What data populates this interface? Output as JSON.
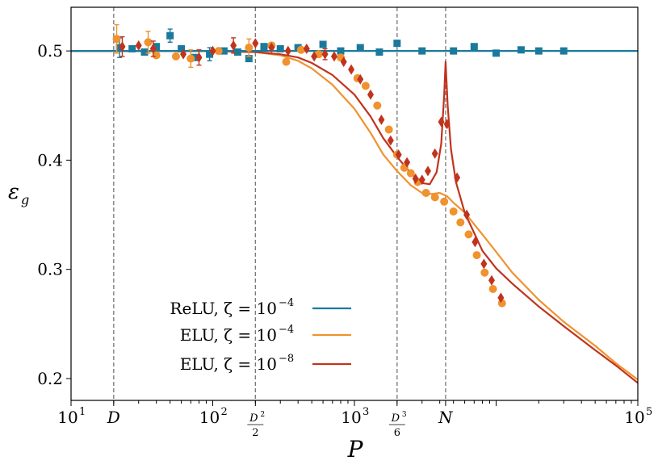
{
  "chart_data": {
    "type": "line+scatter",
    "xscale": "log",
    "xlim": [
      10,
      100000
    ],
    "ylim": [
      0.18,
      0.54
    ],
    "xlabel": "P",
    "ylabel": "ε",
    "ylabel_sub": "g",
    "yticks": [
      {
        "value": 0.2,
        "label": "0.2"
      },
      {
        "value": 0.3,
        "label": "0.3"
      },
      {
        "value": 0.4,
        "label": "0.4"
      },
      {
        "value": 0.5,
        "label": "0.5"
      }
    ],
    "xticks": [
      {
        "value": 10,
        "base": "10",
        "exp": "1"
      },
      {
        "value": 100,
        "base": "10",
        "exp": "2"
      },
      {
        "value": 1000,
        "base": "10",
        "exp": "3"
      },
      {
        "value": 100000,
        "base": "10",
        "exp": "5"
      }
    ],
    "markers": [
      {
        "name": "D",
        "value": 20,
        "label": "D"
      },
      {
        "name": "D2/2",
        "value": 200,
        "num": "D",
        "num_exp": "2",
        "den": "2"
      },
      {
        "name": "D3/6",
        "value": 2000,
        "num": "D",
        "num_exp": "3",
        "den": "6"
      },
      {
        "name": "N",
        "value": 4400,
        "label": "N"
      }
    ],
    "series": [
      {
        "name": "ReLU, ζ = 10^-4",
        "legend_label": "ReLU, ζ = 10",
        "legend_exp": "−4",
        "color": "#1b7a9c",
        "marker": "square",
        "curve": [
          [
            10,
            0.5
          ],
          [
            100000,
            0.5
          ]
        ],
        "points": [
          [
            22,
            0.503,
            0.009
          ],
          [
            27,
            0.502,
            0
          ],
          [
            33,
            0.499,
            0
          ],
          [
            40,
            0.504,
            0
          ],
          [
            50,
            0.514,
            0.006
          ],
          [
            60,
            0.502,
            0
          ],
          [
            75,
            0.494,
            0
          ],
          [
            95,
            0.497,
            0.006
          ],
          [
            120,
            0.5,
            0
          ],
          [
            150,
            0.499,
            0
          ],
          [
            180,
            0.493,
            0
          ],
          [
            230,
            0.504,
            0
          ],
          [
            300,
            0.502,
            0
          ],
          [
            400,
            0.503,
            0
          ],
          [
            600,
            0.506,
            0
          ],
          [
            800,
            0.5,
            0
          ],
          [
            1100,
            0.503,
            0
          ],
          [
            1500,
            0.499,
            0
          ],
          [
            2000,
            0.507,
            0
          ],
          [
            3000,
            0.5,
            0
          ],
          [
            5000,
            0.5,
            0
          ],
          [
            7000,
            0.504,
            0
          ],
          [
            10000,
            0.498,
            0
          ],
          [
            15000,
            0.501,
            0
          ],
          [
            20000,
            0.5,
            0
          ],
          [
            30000,
            0.5,
            0
          ]
        ]
      },
      {
        "name": "ELU, ζ = 10^-4",
        "legend_label": "ELU, ζ = 10",
        "legend_exp": "−4",
        "color": "#f0922e",
        "marker": "circle",
        "curve": [
          [
            10,
            0.5
          ],
          [
            100,
            0.5
          ],
          [
            200,
            0.499
          ],
          [
            300,
            0.496
          ],
          [
            400,
            0.491
          ],
          [
            500,
            0.484
          ],
          [
            700,
            0.469
          ],
          [
            1000,
            0.447
          ],
          [
            1300,
            0.425
          ],
          [
            1600,
            0.405
          ],
          [
            2000,
            0.39
          ],
          [
            2500,
            0.377
          ],
          [
            3000,
            0.37
          ],
          [
            3500,
            0.369
          ],
          [
            4000,
            0.37
          ],
          [
            4500,
            0.367
          ],
          [
            5000,
            0.361
          ],
          [
            6000,
            0.352
          ],
          [
            8000,
            0.332
          ],
          [
            10000,
            0.316
          ],
          [
            13000,
            0.297
          ],
          [
            20000,
            0.272
          ],
          [
            30000,
            0.252
          ],
          [
            50000,
            0.23
          ],
          [
            70000,
            0.214
          ],
          [
            100000,
            0.199
          ]
        ],
        "points": [
          [
            21,
            0.511,
            0.013
          ],
          [
            35,
            0.508,
            0.01
          ],
          [
            40,
            0.496,
            0
          ],
          [
            55,
            0.495,
            0
          ],
          [
            70,
            0.493,
            0.008
          ],
          [
            110,
            0.5,
            0
          ],
          [
            180,
            0.503,
            0.008
          ],
          [
            260,
            0.505,
            0
          ],
          [
            330,
            0.49,
            0
          ],
          [
            420,
            0.501,
            0
          ],
          [
            560,
            0.497,
            0
          ],
          [
            800,
            0.494,
            0
          ],
          [
            1050,
            0.475,
            0
          ],
          [
            1200,
            0.468,
            0
          ],
          [
            1450,
            0.45,
            0
          ],
          [
            1750,
            0.428,
            0
          ],
          [
            2000,
            0.405,
            0
          ],
          [
            2250,
            0.393,
            0
          ],
          [
            2500,
            0.388,
            0
          ],
          [
            2800,
            0.38,
            0
          ],
          [
            3200,
            0.37,
            0
          ],
          [
            3700,
            0.366,
            0
          ],
          [
            4300,
            0.362,
            0
          ],
          [
            5000,
            0.353,
            0
          ],
          [
            5600,
            0.343,
            0
          ],
          [
            6400,
            0.332,
            0
          ],
          [
            7300,
            0.313,
            0
          ],
          [
            8300,
            0.297,
            0
          ],
          [
            9500,
            0.282,
            0
          ],
          [
            11000,
            0.269,
            0
          ]
        ]
      },
      {
        "name": "ELU, ζ = 10^-8",
        "legend_label": "ELU, ζ = 10",
        "legend_exp": "−8",
        "color": "#c0341d",
        "marker": "diamond",
        "curve": [
          [
            10,
            0.5
          ],
          [
            100,
            0.5
          ],
          [
            200,
            0.499
          ],
          [
            300,
            0.497
          ],
          [
            400,
            0.494
          ],
          [
            500,
            0.489
          ],
          [
            700,
            0.478
          ],
          [
            1000,
            0.46
          ],
          [
            1300,
            0.44
          ],
          [
            1600,
            0.42
          ],
          [
            2000,
            0.403
          ],
          [
            2500,
            0.388
          ],
          [
            3000,
            0.379
          ],
          [
            3400,
            0.378
          ],
          [
            3800,
            0.389
          ],
          [
            4100,
            0.415
          ],
          [
            4300,
            0.46
          ],
          [
            4400,
            0.49
          ],
          [
            4550,
            0.45
          ],
          [
            4800,
            0.41
          ],
          [
            5200,
            0.38
          ],
          [
            6000,
            0.352
          ],
          [
            8000,
            0.317
          ],
          [
            10000,
            0.301
          ],
          [
            13000,
            0.287
          ],
          [
            20000,
            0.266
          ],
          [
            30000,
            0.248
          ],
          [
            50000,
            0.226
          ],
          [
            70000,
            0.212
          ],
          [
            100000,
            0.196
          ]
        ],
        "points": [
          [
            23,
            0.504,
            0.009
          ],
          [
            30,
            0.505,
            0
          ],
          [
            38,
            0.502,
            0.007
          ],
          [
            62,
            0.497,
            0
          ],
          [
            80,
            0.494,
            0.007
          ],
          [
            100,
            0.5,
            0
          ],
          [
            140,
            0.505,
            0.007
          ],
          [
            200,
            0.507,
            0
          ],
          [
            260,
            0.503,
            0
          ],
          [
            340,
            0.5,
            0
          ],
          [
            460,
            0.502,
            0
          ],
          [
            520,
            0.495,
            0
          ],
          [
            620,
            0.497,
            0.005
          ],
          [
            720,
            0.495,
            0
          ],
          [
            840,
            0.49,
            0
          ],
          [
            950,
            0.483,
            0
          ],
          [
            1100,
            0.474,
            0
          ],
          [
            1300,
            0.46,
            0
          ],
          [
            1550,
            0.437,
            0
          ],
          [
            1800,
            0.418,
            0
          ],
          [
            2050,
            0.405,
            0
          ],
          [
            2350,
            0.398,
            0
          ],
          [
            2700,
            0.383,
            0
          ],
          [
            3000,
            0.382,
            0
          ],
          [
            3300,
            0.39,
            0
          ],
          [
            3700,
            0.406,
            0
          ],
          [
            4100,
            0.435,
            0
          ],
          [
            4500,
            0.433,
            0
          ],
          [
            5300,
            0.384,
            0
          ],
          [
            6200,
            0.35,
            0
          ],
          [
            7100,
            0.325,
            0
          ],
          [
            8200,
            0.305,
            0
          ],
          [
            9300,
            0.29,
            0
          ],
          [
            10800,
            0.274,
            0
          ]
        ]
      }
    ]
  }
}
